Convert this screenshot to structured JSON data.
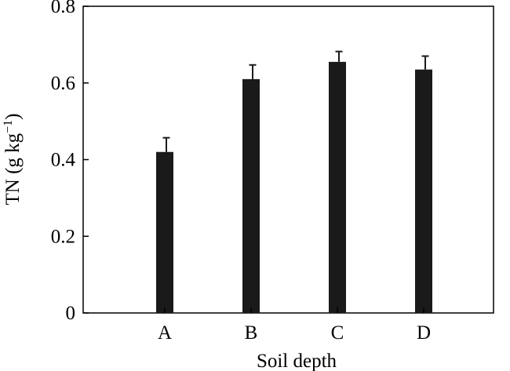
{
  "chart_data": {
    "type": "bar",
    "categories": [
      "A",
      "B",
      "C",
      "D"
    ],
    "values": [
      0.42,
      0.61,
      0.655,
      0.635
    ],
    "errors": [
      0.037,
      0.037,
      0.027,
      0.035
    ],
    "xlabel": "Soil depth",
    "ylabel": {
      "base": "TN (g kg",
      "sup": "−1",
      "close": ")"
    },
    "ylim": [
      0,
      0.8
    ],
    "yticks": [
      0,
      0.2,
      0.4,
      0.6,
      0.8
    ],
    "ytick_labels": [
      "0",
      "0.2",
      "0.4",
      "0.6",
      "0.8"
    ],
    "grid": false,
    "colors": {
      "bar": "#1a1a1a",
      "axis": "#000000"
    }
  }
}
